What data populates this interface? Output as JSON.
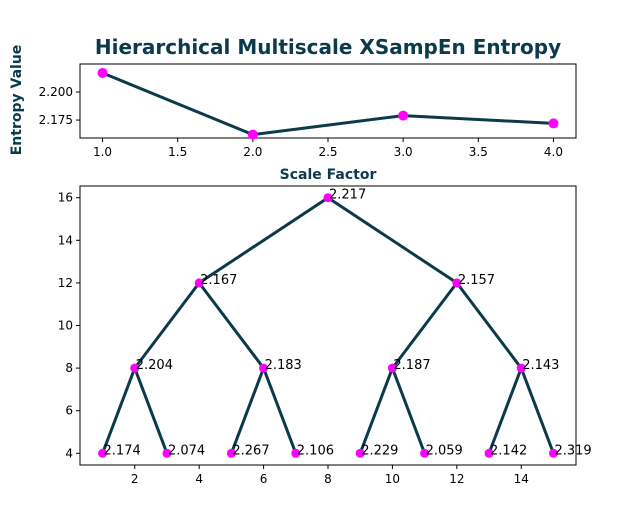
{
  "chart_data": [
    {
      "type": "line",
      "title": "Hierarchical Multiscale XSampEn Entropy",
      "xlabel": "Scale Factor",
      "ylabel": "Entropy Value",
      "x": [
        1,
        2,
        3,
        4
      ],
      "series": [
        {
          "values": [
            2.217,
            2.162,
            2.179,
            2.172
          ]
        }
      ],
      "xlim": [
        0.85,
        4.15
      ],
      "ylim": [
        2.159,
        2.225
      ],
      "xticks": [
        "1.0",
        "1.5",
        "2.0",
        "2.5",
        "3.0",
        "3.5",
        "4.0"
      ],
      "yticks": [
        "2.175",
        "2.200"
      ],
      "line_color": "#0b3a4a",
      "marker_color": "#ff00ff",
      "grid": false
    },
    {
      "type": "tree",
      "xlabel": "",
      "ylabel": "",
      "xlim": [
        0.3,
        15.7
      ],
      "ylim": [
        3.45,
        16.55
      ],
      "xticks": [
        "2",
        "4",
        "6",
        "8",
        "10",
        "12",
        "14"
      ],
      "yticks": [
        "4",
        "6",
        "8",
        "10",
        "12",
        "14",
        "16"
      ],
      "nodes": [
        {
          "x": 8,
          "y": 16,
          "label": "2.217"
        },
        {
          "x": 4,
          "y": 12,
          "label": "2.167"
        },
        {
          "x": 12,
          "y": 12,
          "label": "2.157"
        },
        {
          "x": 2,
          "y": 8,
          "label": "2.204"
        },
        {
          "x": 6,
          "y": 8,
          "label": "2.183"
        },
        {
          "x": 10,
          "y": 8,
          "label": "2.187"
        },
        {
          "x": 14,
          "y": 8,
          "label": "2.143"
        },
        {
          "x": 1,
          "y": 4,
          "label": "2.174"
        },
        {
          "x": 3,
          "y": 4,
          "label": "2.074"
        },
        {
          "x": 5,
          "y": 4,
          "label": "2.267"
        },
        {
          "x": 7,
          "y": 4,
          "label": "2.106"
        },
        {
          "x": 9,
          "y": 4,
          "label": "2.229"
        },
        {
          "x": 11,
          "y": 4,
          "label": "2.059"
        },
        {
          "x": 13,
          "y": 4,
          "label": "2.142"
        },
        {
          "x": 15,
          "y": 4,
          "label": "2.319"
        }
      ],
      "edges": [
        [
          0,
          1
        ],
        [
          0,
          2
        ],
        [
          1,
          3
        ],
        [
          1,
          4
        ],
        [
          2,
          5
        ],
        [
          2,
          6
        ],
        [
          3,
          7
        ],
        [
          3,
          8
        ],
        [
          4,
          9
        ],
        [
          4,
          10
        ],
        [
          5,
          11
        ],
        [
          5,
          12
        ],
        [
          6,
          13
        ],
        [
          6,
          14
        ]
      ],
      "line_color": "#0b3a4a",
      "marker_color": "#ff00ff",
      "grid": false
    }
  ]
}
